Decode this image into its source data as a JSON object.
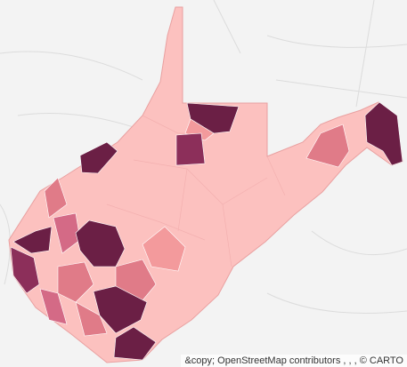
{
  "attribution": "&copy; OpenStreetMap contributors , , , © CARTO"
}
